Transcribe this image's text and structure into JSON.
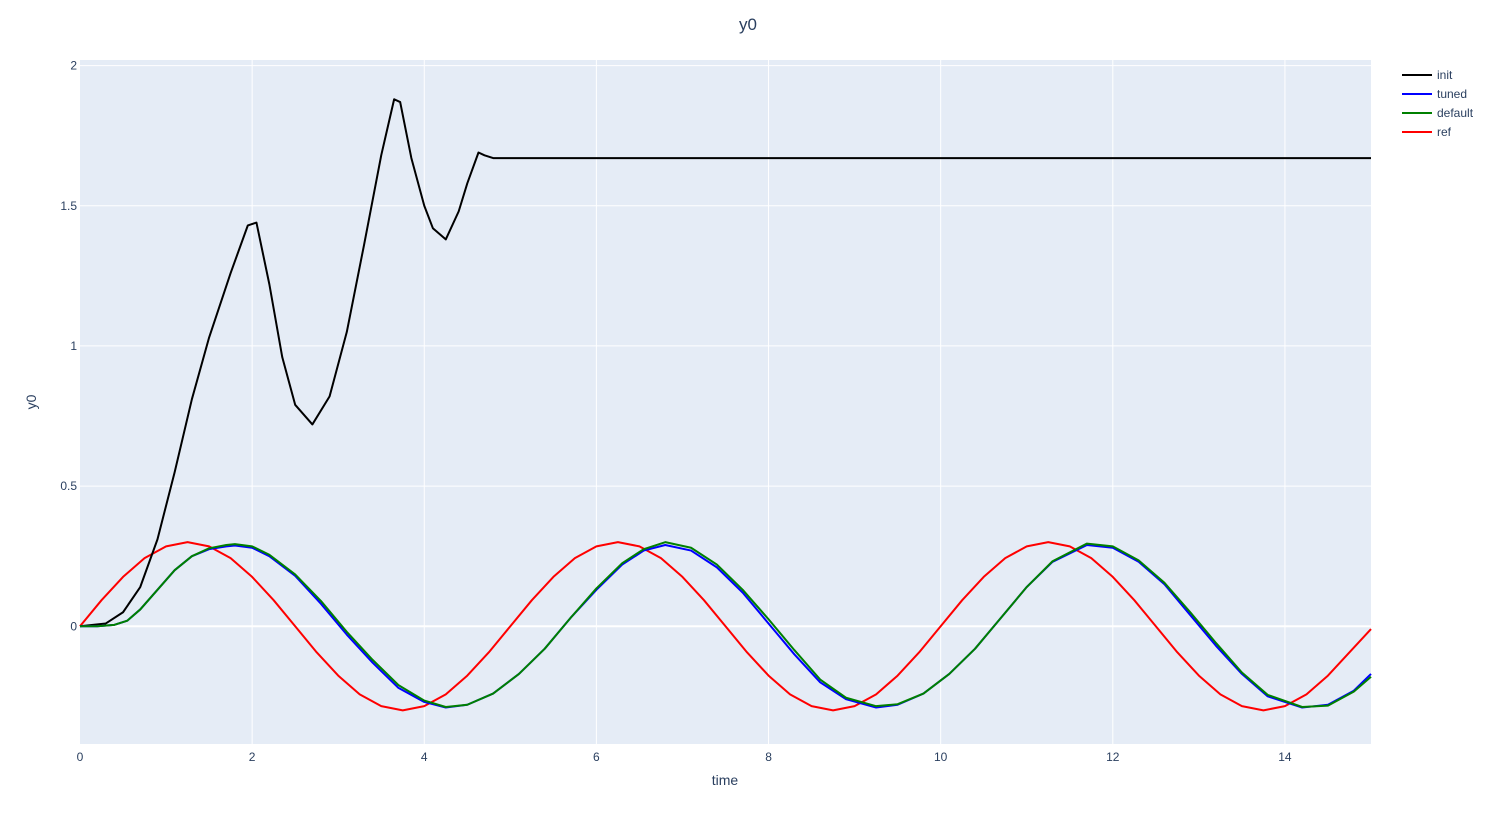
{
  "chart_data": {
    "type": "line",
    "title": "y0",
    "xlabel": "time",
    "ylabel": "y0",
    "xlim": [
      0,
      15
    ],
    "ylim": [
      -0.42,
      2.02
    ],
    "x_ticks": [
      0,
      2,
      4,
      6,
      8,
      10,
      12,
      14
    ],
    "x_tick_labels": [
      "0",
      "2",
      "4",
      "6",
      "8",
      "10",
      "12",
      "14"
    ],
    "y_ticks": [
      0,
      0.5,
      1,
      1.5,
      2
    ],
    "y_tick_labels": [
      "0",
      "0.5",
      "1",
      "1.5",
      "2"
    ],
    "grid": true,
    "legend_position": "top-right",
    "colors": {
      "plot_bg": "#e5ecf6",
      "grid": "#ffffff",
      "text": "#2a3f5f"
    },
    "series": [
      {
        "name": "init",
        "color": "#000000",
        "x": [
          0,
          0.3,
          0.5,
          0.7,
          0.9,
          1.1,
          1.3,
          1.5,
          1.75,
          1.95,
          2.05,
          2.2,
          2.35,
          2.5,
          2.7,
          2.9,
          3.1,
          3.3,
          3.5,
          3.65,
          3.72,
          3.85,
          4.0,
          4.1,
          4.25,
          4.4,
          4.5,
          4.63,
          4.7,
          4.8,
          5.0,
          6,
          8,
          10,
          12,
          15
        ],
        "y": [
          0,
          0.01,
          0.05,
          0.14,
          0.31,
          0.55,
          0.81,
          1.03,
          1.26,
          1.43,
          1.44,
          1.22,
          0.96,
          0.79,
          0.72,
          0.82,
          1.05,
          1.36,
          1.68,
          1.88,
          1.87,
          1.67,
          1.5,
          1.42,
          1.38,
          1.48,
          1.58,
          1.69,
          1.68,
          1.67,
          1.67,
          1.67,
          1.67,
          1.67,
          1.67,
          1.67
        ]
      },
      {
        "name": "tuned",
        "color": "#0000ff",
        "x": [
          0,
          0.2,
          0.4,
          0.55,
          0.7,
          0.9,
          1.1,
          1.3,
          1.5,
          1.7,
          1.8,
          2.0,
          2.2,
          2.5,
          2.8,
          3.1,
          3.4,
          3.7,
          4.0,
          4.25,
          4.5,
          4.8,
          5.1,
          5.4,
          5.7,
          6.0,
          6.3,
          6.55,
          6.8,
          7.1,
          7.4,
          7.7,
          8.0,
          8.3,
          8.6,
          8.9,
          9.25,
          9.5,
          9.8,
          10.1,
          10.4,
          10.7,
          11.0,
          11.3,
          11.7,
          12.0,
          12.3,
          12.6,
          12.9,
          13.2,
          13.5,
          13.8,
          14.2,
          14.5,
          14.8,
          15.0
        ],
        "y": [
          0,
          0.0,
          0.005,
          0.02,
          0.06,
          0.13,
          0.2,
          0.25,
          0.275,
          0.285,
          0.288,
          0.28,
          0.25,
          0.18,
          0.08,
          -0.03,
          -0.13,
          -0.22,
          -0.27,
          -0.29,
          -0.28,
          -0.24,
          -0.17,
          -0.08,
          0.03,
          0.13,
          0.22,
          0.27,
          0.29,
          0.27,
          0.21,
          0.12,
          0.01,
          -0.1,
          -0.2,
          -0.26,
          -0.29,
          -0.28,
          -0.24,
          -0.17,
          -0.08,
          0.03,
          0.14,
          0.23,
          0.29,
          0.28,
          0.23,
          0.15,
          0.04,
          -0.07,
          -0.17,
          -0.25,
          -0.29,
          -0.28,
          -0.23,
          -0.17
        ]
      },
      {
        "name": "default",
        "color": "#008000",
        "x": [
          0,
          0.2,
          0.4,
          0.55,
          0.7,
          0.9,
          1.1,
          1.3,
          1.5,
          1.7,
          1.8,
          2.0,
          2.2,
          2.5,
          2.8,
          3.1,
          3.4,
          3.7,
          4.0,
          4.25,
          4.5,
          4.8,
          5.1,
          5.4,
          5.7,
          6.0,
          6.3,
          6.55,
          6.8,
          7.1,
          7.4,
          7.7,
          8.0,
          8.3,
          8.6,
          8.9,
          9.25,
          9.5,
          9.8,
          10.1,
          10.4,
          10.7,
          11.0,
          11.3,
          11.7,
          12.0,
          12.3,
          12.6,
          12.9,
          13.2,
          13.5,
          13.8,
          14.2,
          14.5,
          14.8,
          15.0
        ],
        "y": [
          0,
          0.0,
          0.005,
          0.02,
          0.06,
          0.13,
          0.2,
          0.25,
          0.278,
          0.29,
          0.293,
          0.285,
          0.255,
          0.185,
          0.09,
          -0.02,
          -0.12,
          -0.21,
          -0.265,
          -0.288,
          -0.28,
          -0.24,
          -0.17,
          -0.08,
          0.03,
          0.135,
          0.225,
          0.275,
          0.3,
          0.28,
          0.22,
          0.13,
          0.025,
          -0.085,
          -0.19,
          -0.255,
          -0.285,
          -0.278,
          -0.24,
          -0.17,
          -0.08,
          0.03,
          0.14,
          0.232,
          0.295,
          0.285,
          0.235,
          0.155,
          0.05,
          -0.06,
          -0.165,
          -0.245,
          -0.288,
          -0.283,
          -0.233,
          -0.18
        ]
      },
      {
        "name": "ref",
        "color": "#ff0000",
        "x": [
          0,
          0.25,
          0.5,
          0.75,
          1.0,
          1.25,
          1.5,
          1.75,
          2.0,
          2.25,
          2.5,
          2.75,
          3.0,
          3.25,
          3.5,
          3.75,
          4.0,
          4.25,
          4.5,
          4.75,
          5.0,
          5.25,
          5.5,
          5.75,
          6.0,
          6.25,
          6.5,
          6.75,
          7.0,
          7.25,
          7.5,
          7.75,
          8.0,
          8.25,
          8.5,
          8.75,
          9.0,
          9.25,
          9.5,
          9.75,
          10.0,
          10.25,
          10.5,
          10.75,
          11.0,
          11.25,
          11.5,
          11.75,
          12.0,
          12.25,
          12.5,
          12.75,
          13.0,
          13.25,
          13.5,
          13.75,
          14.0,
          14.25,
          14.5,
          14.75,
          15.0
        ],
        "y": [
          0,
          0.093,
          0.176,
          0.243,
          0.285,
          0.3,
          0.285,
          0.243,
          0.176,
          0.093,
          0.0,
          -0.093,
          -0.176,
          -0.243,
          -0.285,
          -0.3,
          -0.285,
          -0.243,
          -0.176,
          -0.093,
          0.0,
          0.093,
          0.176,
          0.243,
          0.285,
          0.3,
          0.285,
          0.243,
          0.176,
          0.093,
          0.0,
          -0.093,
          -0.176,
          -0.243,
          -0.285,
          -0.3,
          -0.285,
          -0.243,
          -0.176,
          -0.093,
          0.0,
          0.093,
          0.176,
          0.243,
          0.285,
          0.3,
          0.285,
          0.243,
          0.176,
          0.093,
          0.0,
          -0.093,
          -0.176,
          -0.243,
          -0.285,
          -0.3,
          -0.285,
          -0.243,
          -0.176,
          -0.093,
          -0.01
        ]
      }
    ]
  }
}
